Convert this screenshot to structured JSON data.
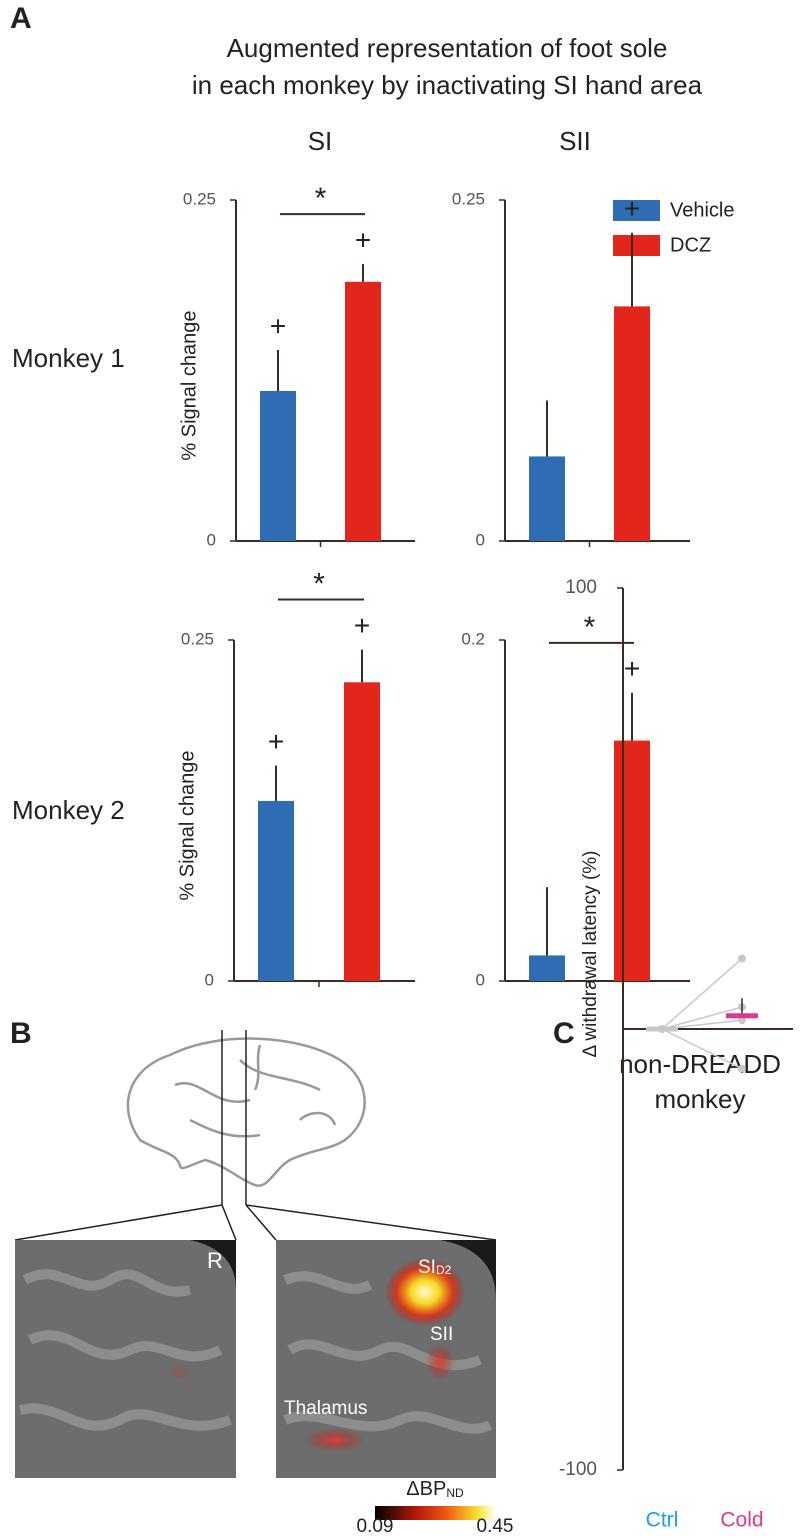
{
  "figure": {
    "panels": [
      "A",
      "B",
      "C"
    ],
    "title": [
      "Augmented representation of foot sole",
      "in each monkey by inactivating SI hand area"
    ],
    "columns": [
      "SI",
      "SII"
    ],
    "rows": [
      "Monkey 1",
      "Monkey 2"
    ],
    "legend": [
      {
        "name": "Vehicle",
        "color": "#2e6db4"
      },
      {
        "name": "DCZ",
        "color": "#e2261c"
      }
    ]
  },
  "brain": {
    "hemisphere": "R",
    "regions": [
      {
        "label": "SI",
        "sub": "D2"
      },
      {
        "label": "SII"
      },
      {
        "label": "Thalamus"
      }
    ],
    "colorbar": {
      "label": "ΔBP",
      "sub": "ND",
      "lim": [
        0.09,
        0.45
      ],
      "ticks": [
        0.09,
        0.45
      ]
    }
  },
  "chart_data": [
    {
      "type": "bar",
      "ylabel": "% Signal change",
      "values": [
        0.11,
        0.19
      ],
      "errors": [
        0.03,
        0.013
      ],
      "ylim": [
        0,
        0.25
      ],
      "yticks": [
        0,
        0.25
      ],
      "above_bar": [
        "+",
        "+"
      ],
      "significance": "*"
    },
    {
      "type": "bar",
      "values": [
        0.062,
        0.172
      ],
      "errors": [
        0.041,
        0.054
      ],
      "ylim": [
        0,
        0.25
      ],
      "yticks": [
        0,
        0.25
      ],
      "above_bar": [
        null,
        "+"
      ]
    },
    {
      "type": "bar",
      "ylabel": "% Signal change",
      "values": [
        0.132,
        0.219
      ],
      "errors": [
        0.026,
        0.024
      ],
      "ylim": [
        0,
        0.25
      ],
      "yticks": [
        0,
        0.25
      ],
      "above_bar": [
        "+",
        "+"
      ],
      "significance": "*"
    },
    {
      "type": "bar",
      "values": [
        0.015,
        0.141
      ],
      "errors": [
        0.04,
        0.028
      ],
      "ylim": [
        0,
        0.2
      ],
      "yticks": [
        0,
        0.2
      ],
      "above_bar": [
        null,
        "+"
      ],
      "significance": "*"
    },
    {
      "type": "line",
      "title": [
        "non-DREADD",
        "monkey"
      ],
      "ylabel": "Δ withdrawal  latency (%)",
      "categories": [
        "Ctrl",
        "Cold"
      ],
      "category_colors": [
        "#1aa3d9",
        "#e0388f"
      ],
      "line_color": "#c8c8c8",
      "series": [
        {
          "values": [
            0,
            16
          ]
        },
        {
          "values": [
            0,
            5
          ]
        },
        {
          "values": [
            0,
            2
          ]
        },
        {
          "values": [
            0,
            -9
          ]
        }
      ],
      "means": [
        0,
        3
      ],
      "mean_colors": [
        "#c8c8c8",
        "#e0388f"
      ],
      "errors": [
        0,
        4
      ],
      "ylim": [
        -100,
        100
      ],
      "yticks": [
        -100,
        100
      ]
    }
  ]
}
